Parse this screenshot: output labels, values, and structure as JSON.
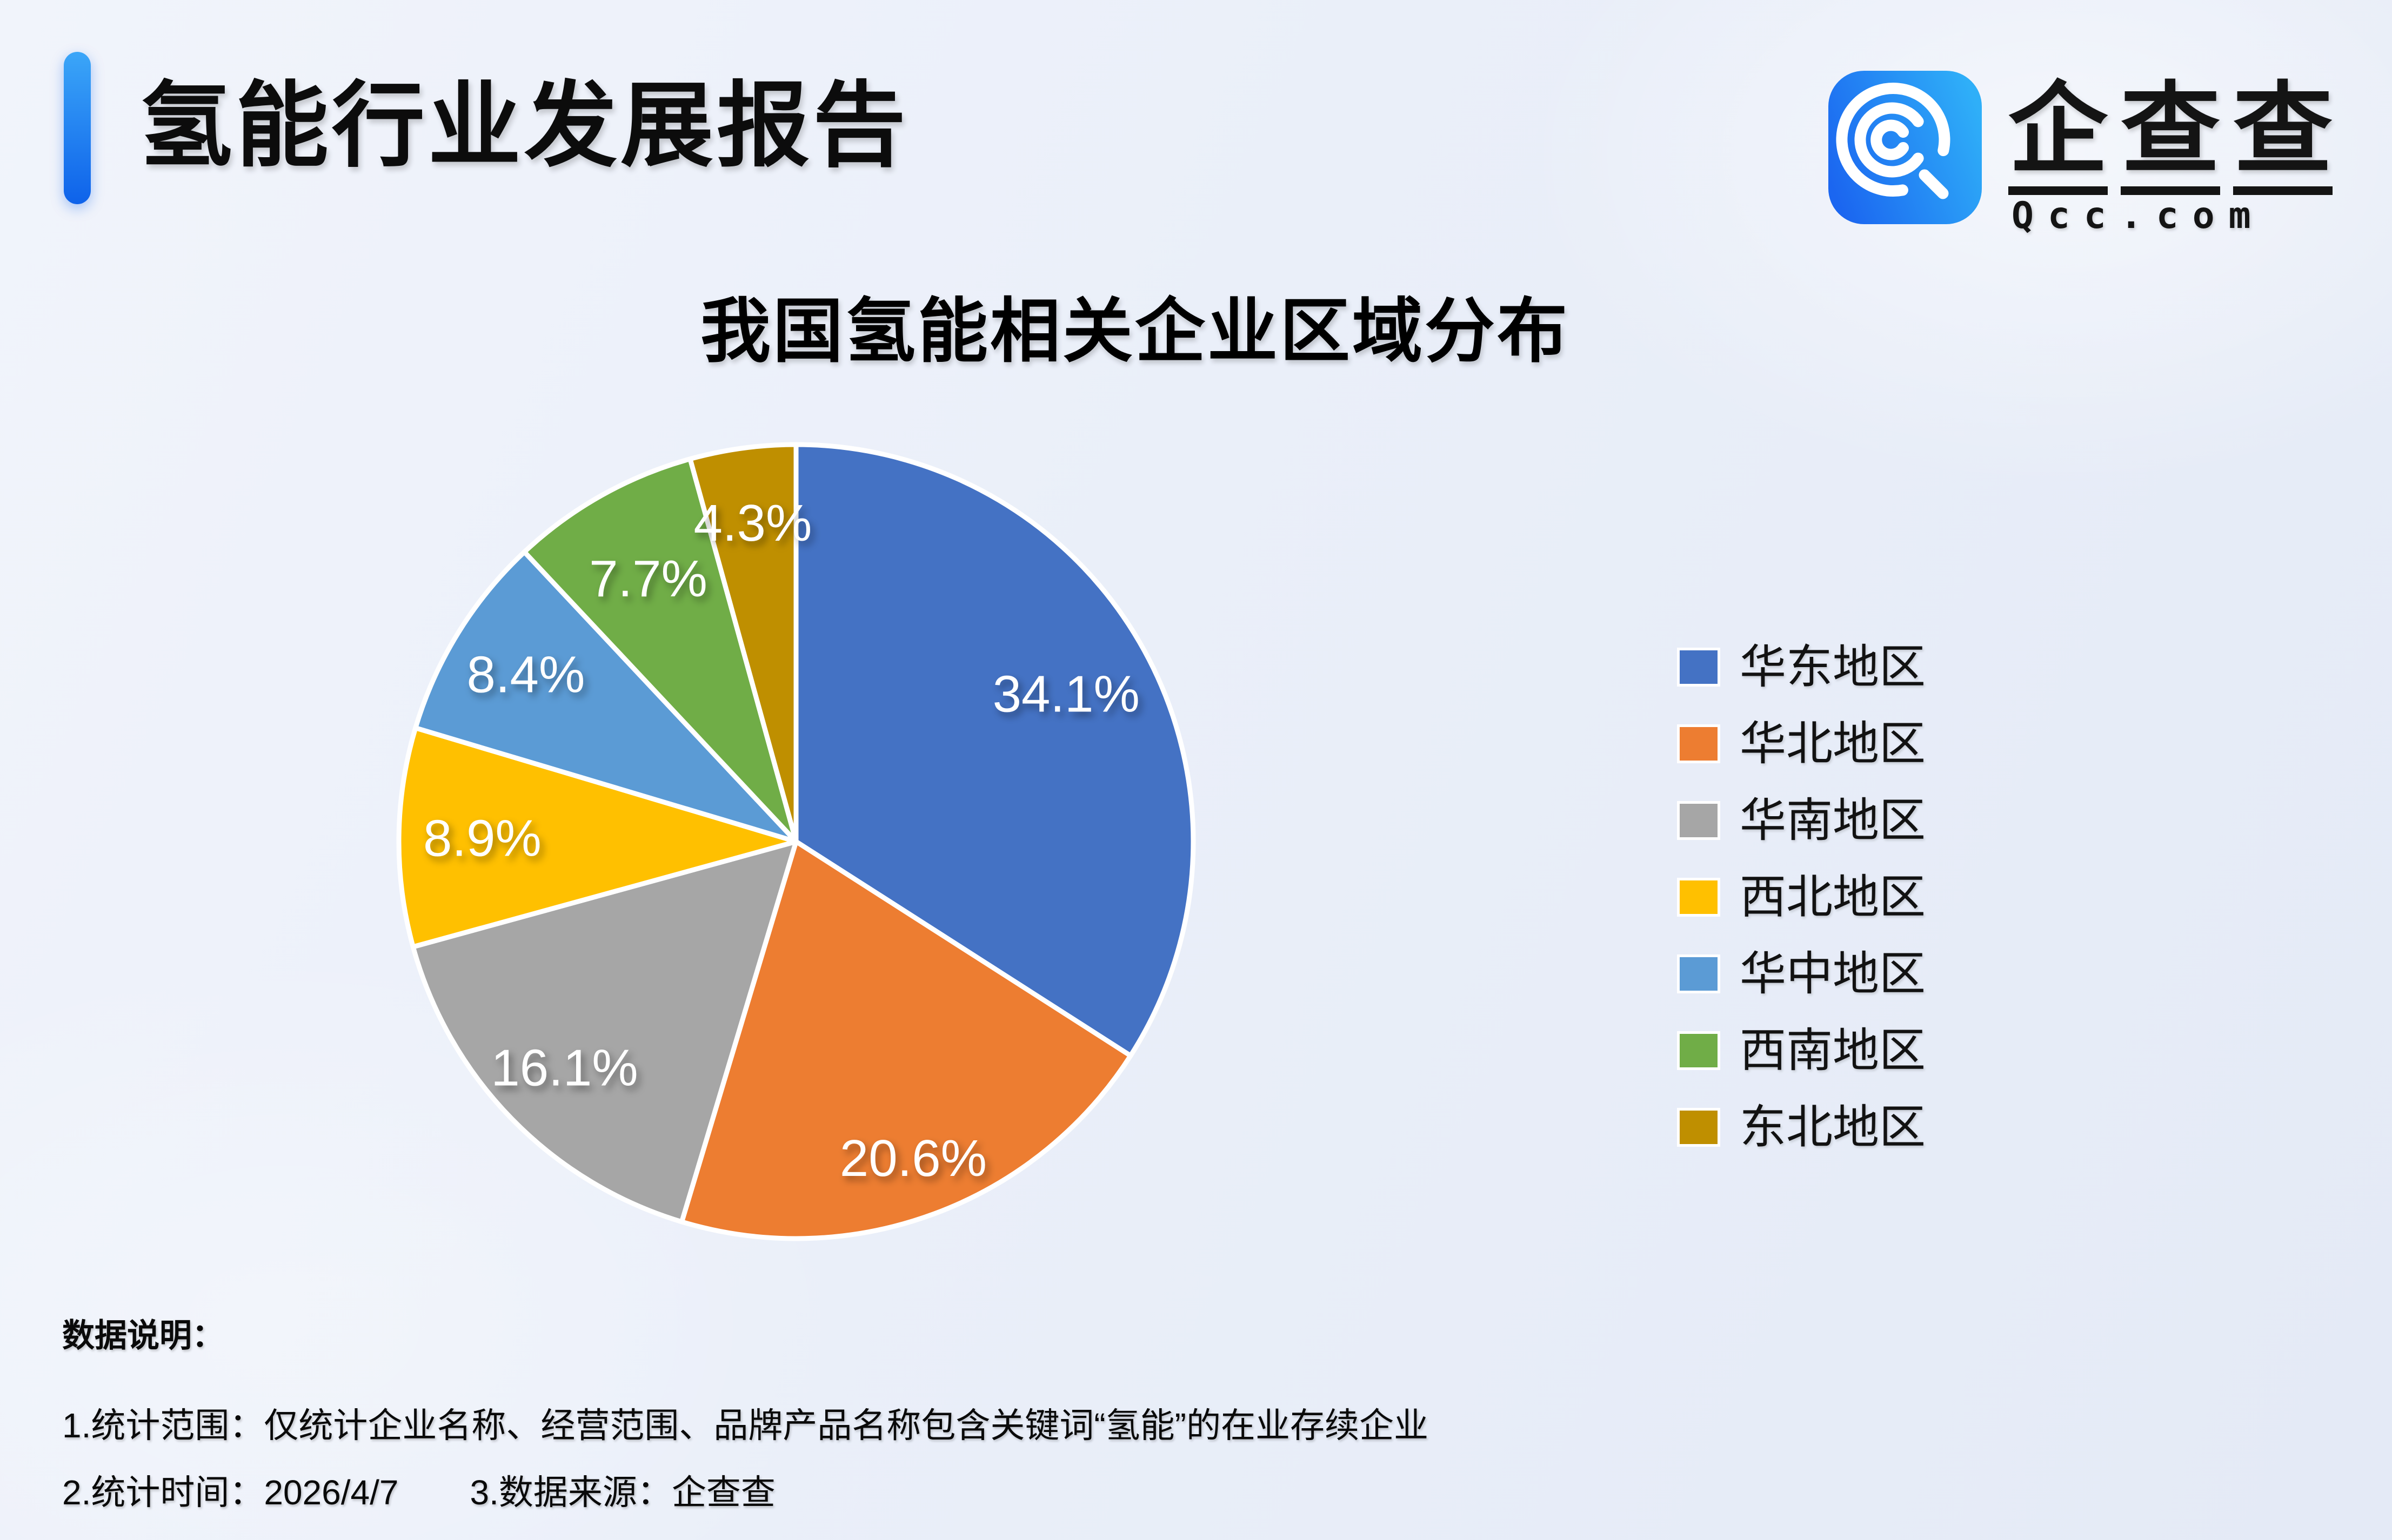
{
  "header": {
    "title": "氢能行业发展报告",
    "accent_color": "#1677F2",
    "brand": {
      "name_chars": [
        "企",
        "查",
        "查"
      ],
      "domain": "Qcc.com",
      "icon_color_from": "#1B66F0",
      "icon_color_to": "#2FAFF8"
    }
  },
  "chart_data": {
    "type": "pie",
    "title": "我国氢能相关企业区域分布",
    "categories": [
      "华东地区",
      "华北地区",
      "华南地区",
      "西北地区",
      "华中地区",
      "西南地区",
      "东北地区"
    ],
    "values": [
      34.1,
      20.6,
      16.1,
      8.9,
      8.4,
      7.7,
      4.3
    ],
    "labels": [
      "34.1%",
      "20.6%",
      "16.1%",
      "8.9%",
      "8.4%",
      "7.7%",
      "4.3%"
    ],
    "colors": [
      "#4472C4",
      "#ED7D31",
      "#A6A6A6",
      "#FFC000",
      "#5B9BD5",
      "#70AD47",
      "#BF8F00"
    ],
    "start_angle_deg": 0,
    "direction": "clockwise",
    "slice_border_color": "#FFFFFF",
    "data_label_color": "#FFFFFF",
    "label_radius_fraction": [
      0.775,
      0.85,
      0.815,
      0.79,
      0.8,
      0.76,
      0.81
    ],
    "legend_position": "right",
    "grid": false
  },
  "notes": {
    "heading": "数据说明：",
    "items": [
      "1.统计范围：仅统计企业名称、经营范围、品牌产品名称包含关键词“氢能”的在业存续企业",
      "2.统计时间：2026/4/7",
      "3.数据来源：企查查"
    ]
  }
}
